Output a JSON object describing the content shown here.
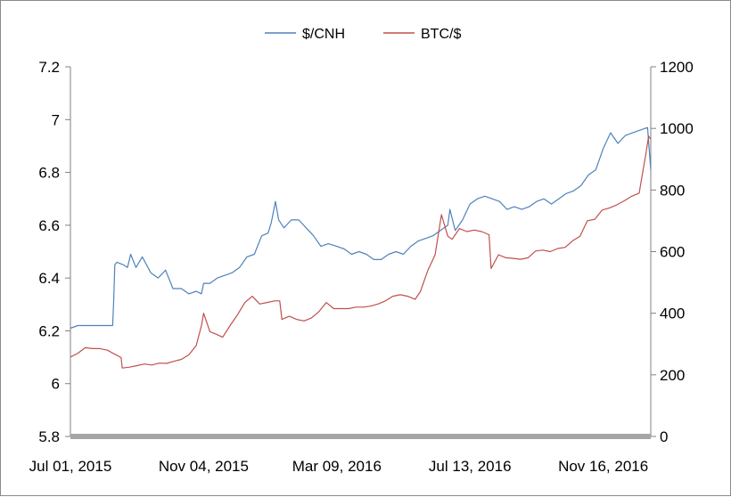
{
  "chart_data": {
    "type": "line",
    "title": "",
    "xlabel": "",
    "ylabel": "",
    "legend_position": "top",
    "x_tick_labels": [
      "Jul 01, 2015",
      "Nov 04, 2015",
      "Mar 09, 2016",
      "Jul 13, 2016",
      "Nov 16, 2016"
    ],
    "x_ticks": [
      "2015-07-01",
      "2015-11-04",
      "2016-03-09",
      "2016-07-13",
      "2016-11-16"
    ],
    "x_range": [
      "2015-07-01",
      "2016-12-31"
    ],
    "y_left": {
      "range": [
        5.8,
        7.2
      ],
      "ticks": [
        "5.8",
        "6",
        "6.2",
        "6.4",
        "6.6",
        "6.8",
        "7",
        "7.2"
      ]
    },
    "y_right": {
      "range": [
        0,
        1200
      ],
      "ticks": [
        "0",
        "200",
        "400",
        "600",
        "800",
        "1000",
        "1200"
      ]
    },
    "series": [
      {
        "name": "$/CNH",
        "axis": "left",
        "color": "#4f81bd",
        "x": [
          "2015-07-01",
          "2015-07-08",
          "2015-07-15",
          "2015-07-22",
          "2015-07-29",
          "2015-08-05",
          "2015-08-10",
          "2015-08-11",
          "2015-08-12",
          "2015-08-14",
          "2015-08-20",
          "2015-08-24",
          "2015-08-27",
          "2015-09-01",
          "2015-09-07",
          "2015-09-15",
          "2015-09-22",
          "2015-09-29",
          "2015-10-06",
          "2015-10-14",
          "2015-10-21",
          "2015-10-28",
          "2015-11-02",
          "2015-11-04",
          "2015-11-10",
          "2015-11-17",
          "2015-11-24",
          "2015-12-01",
          "2015-12-08",
          "2015-12-15",
          "2015-12-22",
          "2015-12-29",
          "2016-01-04",
          "2016-01-07",
          "2016-01-11",
          "2016-01-14",
          "2016-01-19",
          "2016-01-26",
          "2016-02-02",
          "2016-02-09",
          "2016-02-16",
          "2016-02-23",
          "2016-03-01",
          "2016-03-09",
          "2016-03-16",
          "2016-03-23",
          "2016-03-30",
          "2016-04-06",
          "2016-04-13",
          "2016-04-20",
          "2016-04-27",
          "2016-05-04",
          "2016-05-11",
          "2016-05-18",
          "2016-05-25",
          "2016-06-01",
          "2016-06-08",
          "2016-06-15",
          "2016-06-22",
          "2016-06-24",
          "2016-06-29",
          "2016-07-06",
          "2016-07-13",
          "2016-07-20",
          "2016-07-27",
          "2016-08-03",
          "2016-08-10",
          "2016-08-17",
          "2016-08-24",
          "2016-08-31",
          "2016-09-07",
          "2016-09-14",
          "2016-09-21",
          "2016-09-28",
          "2016-10-05",
          "2016-10-12",
          "2016-10-19",
          "2016-10-26",
          "2016-11-02",
          "2016-11-09",
          "2016-11-16",
          "2016-11-23",
          "2016-11-30",
          "2016-12-07",
          "2016-12-14",
          "2016-12-21",
          "2016-12-28",
          "2016-12-31"
        ],
        "values": [
          6.21,
          6.22,
          6.22,
          6.22,
          6.22,
          6.22,
          6.22,
          6.32,
          6.45,
          6.46,
          6.45,
          6.44,
          6.49,
          6.44,
          6.48,
          6.42,
          6.4,
          6.43,
          6.36,
          6.36,
          6.34,
          6.35,
          6.34,
          6.38,
          6.38,
          6.4,
          6.41,
          6.42,
          6.44,
          6.48,
          6.49,
          6.56,
          6.57,
          6.61,
          6.69,
          6.62,
          6.59,
          6.62,
          6.62,
          6.59,
          6.56,
          6.52,
          6.53,
          6.52,
          6.51,
          6.49,
          6.5,
          6.49,
          6.47,
          6.47,
          6.49,
          6.5,
          6.49,
          6.52,
          6.54,
          6.55,
          6.56,
          6.58,
          6.6,
          6.66,
          6.58,
          6.62,
          6.68,
          6.7,
          6.71,
          6.7,
          6.69,
          6.66,
          6.67,
          6.66,
          6.67,
          6.69,
          6.7,
          6.68,
          6.7,
          6.72,
          6.73,
          6.75,
          6.79,
          6.81,
          6.89,
          6.95,
          6.91,
          6.94,
          6.95,
          6.96,
          6.97,
          6.81
        ]
      },
      {
        "name": "BTC/$",
        "axis": "right",
        "color": "#c0504d",
        "x": [
          "2015-07-01",
          "2015-07-08",
          "2015-07-15",
          "2015-07-22",
          "2015-07-29",
          "2015-08-05",
          "2015-08-12",
          "2015-08-18",
          "2015-08-19",
          "2015-08-26",
          "2015-09-02",
          "2015-09-09",
          "2015-09-16",
          "2015-09-23",
          "2015-09-30",
          "2015-10-07",
          "2015-10-14",
          "2015-10-21",
          "2015-10-28",
          "2015-11-02",
          "2015-11-04",
          "2015-11-06",
          "2015-11-10",
          "2015-11-15",
          "2015-11-22",
          "2015-11-29",
          "2015-12-06",
          "2015-12-13",
          "2015-12-20",
          "2015-12-27",
          "2016-01-03",
          "2016-01-10",
          "2016-01-15",
          "2016-01-17",
          "2016-01-24",
          "2016-01-31",
          "2016-02-07",
          "2016-02-14",
          "2016-02-21",
          "2016-02-28",
          "2016-03-06",
          "2016-03-13",
          "2016-03-20",
          "2016-03-27",
          "2016-04-03",
          "2016-04-10",
          "2016-04-17",
          "2016-04-24",
          "2016-05-01",
          "2016-05-08",
          "2016-05-15",
          "2016-05-22",
          "2016-05-27",
          "2016-06-03",
          "2016-06-10",
          "2016-06-16",
          "2016-06-22",
          "2016-06-26",
          "2016-07-03",
          "2016-07-10",
          "2016-07-17",
          "2016-07-24",
          "2016-07-31",
          "2016-08-02",
          "2016-08-09",
          "2016-08-16",
          "2016-08-23",
          "2016-08-30",
          "2016-09-06",
          "2016-09-13",
          "2016-09-20",
          "2016-09-27",
          "2016-10-04",
          "2016-10-11",
          "2016-10-18",
          "2016-10-25",
          "2016-11-01",
          "2016-11-08",
          "2016-11-15",
          "2016-11-22",
          "2016-11-29",
          "2016-12-06",
          "2016-12-13",
          "2016-12-20",
          "2016-12-23",
          "2016-12-26",
          "2016-12-29",
          "2016-12-31"
        ],
        "values": [
          258,
          270,
          288,
          285,
          285,
          280,
          267,
          256,
          222,
          225,
          230,
          235,
          232,
          238,
          237,
          244,
          250,
          265,
          295,
          360,
          400,
          380,
          340,
          333,
          322,
          360,
          395,
          435,
          455,
          430,
          435,
          440,
          440,
          380,
          390,
          380,
          375,
          385,
          405,
          435,
          415,
          415,
          415,
          420,
          420,
          423,
          430,
          440,
          455,
          460,
          455,
          445,
          470,
          538,
          590,
          720,
          650,
          640,
          675,
          665,
          670,
          665,
          655,
          545,
          590,
          580,
          578,
          575,
          580,
          602,
          605,
          600,
          610,
          614,
          635,
          650,
          700,
          705,
          735,
          742,
          752,
          765,
          780,
          790,
          850,
          910,
          975,
          965
        ]
      }
    ]
  }
}
